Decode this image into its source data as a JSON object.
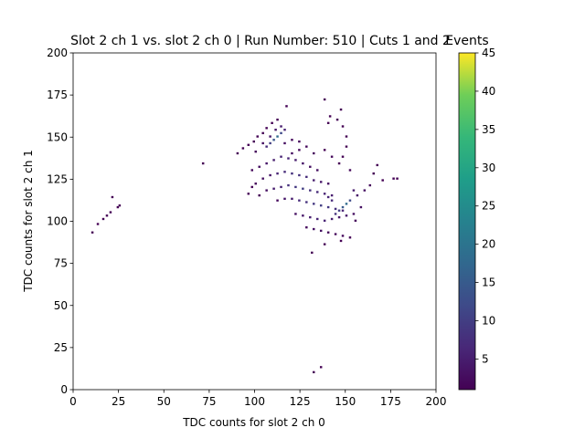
{
  "chart_data": {
    "type": "heatmap",
    "title": "Slot 2 ch 1 vs. slot 2 ch 0 | Run Number: 510 | Cuts 1 and 2",
    "xlabel": "TDC counts for slot 2 ch 0",
    "ylabel": "TDC counts for slot 2 ch 1",
    "xlim": [
      0,
      200
    ],
    "ylim": [
      0,
      200
    ],
    "xticks": [
      "0",
      "25",
      "50",
      "75",
      "100",
      "125",
      "150",
      "175",
      "200"
    ],
    "yticks": [
      "0",
      "25",
      "50",
      "75",
      "100",
      "125",
      "150",
      "175",
      "200"
    ],
    "bin_width": 1,
    "colormap": "viridis",
    "grid": false,
    "colorbar": {
      "label": "Events",
      "range": [
        1,
        45
      ],
      "ticks": [
        "5",
        "10",
        "15",
        "20",
        "25",
        "30",
        "35",
        "40",
        "45"
      ]
    },
    "cells": [
      [
        10,
        93,
        1
      ],
      [
        13,
        98,
        1
      ],
      [
        16,
        101,
        1
      ],
      [
        18,
        103,
        1
      ],
      [
        20,
        105,
        1
      ],
      [
        21,
        114,
        1
      ],
      [
        24,
        108,
        1
      ],
      [
        25,
        109,
        1
      ],
      [
        71,
        134,
        1
      ],
      [
        90,
        140,
        1
      ],
      [
        93,
        143,
        1
      ],
      [
        96,
        145,
        1
      ],
      [
        99,
        147,
        1
      ],
      [
        101,
        150,
        1
      ],
      [
        104,
        152,
        1
      ],
      [
        106,
        155,
        1
      ],
      [
        109,
        158,
        1
      ],
      [
        112,
        160,
        1
      ],
      [
        100,
        141,
        2
      ],
      [
        104,
        146,
        3
      ],
      [
        108,
        150,
        4
      ],
      [
        111,
        154,
        4
      ],
      [
        114,
        156,
        5
      ],
      [
        116,
        146,
        3
      ],
      [
        120,
        148,
        2
      ],
      [
        124,
        147,
        2
      ],
      [
        98,
        130,
        2
      ],
      [
        102,
        132,
        3
      ],
      [
        106,
        134,
        4
      ],
      [
        110,
        136,
        5
      ],
      [
        114,
        138,
        6
      ],
      [
        118,
        137,
        6
      ],
      [
        122,
        136,
        5
      ],
      [
        126,
        134,
        4
      ],
      [
        130,
        132,
        3
      ],
      [
        134,
        130,
        3
      ],
      [
        104,
        125,
        3
      ],
      [
        108,
        127,
        4
      ],
      [
        112,
        128,
        6
      ],
      [
        116,
        129,
        7
      ],
      [
        120,
        128,
        8
      ],
      [
        124,
        127,
        8
      ],
      [
        128,
        126,
        7
      ],
      [
        132,
        124,
        5
      ],
      [
        136,
        123,
        4
      ],
      [
        140,
        122,
        3
      ],
      [
        106,
        118,
        3
      ],
      [
        110,
        119,
        5
      ],
      [
        114,
        120,
        6
      ],
      [
        118,
        121,
        8
      ],
      [
        122,
        120,
        9
      ],
      [
        126,
        119,
        10
      ],
      [
        130,
        118,
        8
      ],
      [
        134,
        117,
        7
      ],
      [
        138,
        116,
        6
      ],
      [
        142,
        115,
        5
      ],
      [
        112,
        112,
        2
      ],
      [
        116,
        113,
        4
      ],
      [
        120,
        113,
        5
      ],
      [
        124,
        112,
        7
      ],
      [
        128,
        111,
        8
      ],
      [
        132,
        110,
        9
      ],
      [
        136,
        109,
        10
      ],
      [
        140,
        108,
        9
      ],
      [
        144,
        107,
        8
      ],
      [
        148,
        106,
        6
      ],
      [
        122,
        104,
        3
      ],
      [
        126,
        103,
        4
      ],
      [
        130,
        102,
        5
      ],
      [
        134,
        101,
        6
      ],
      [
        138,
        100,
        6
      ],
      [
        142,
        101,
        5
      ],
      [
        146,
        102,
        4
      ],
      [
        150,
        103,
        4
      ],
      [
        154,
        104,
        3
      ],
      [
        128,
        96,
        2
      ],
      [
        132,
        95,
        3
      ],
      [
        136,
        94,
        3
      ],
      [
        140,
        93,
        2
      ],
      [
        144,
        92,
        2
      ],
      [
        148,
        91,
        2
      ],
      [
        152,
        90,
        1
      ],
      [
        131,
        81,
        1
      ],
      [
        138,
        86,
        1
      ],
      [
        147,
        88,
        1
      ],
      [
        155,
        100,
        2
      ],
      [
        158,
        108,
        3
      ],
      [
        156,
        115,
        4
      ],
      [
        154,
        118,
        5
      ],
      [
        152,
        112,
        12
      ],
      [
        150,
        110,
        18
      ],
      [
        148,
        108,
        15
      ],
      [
        146,
        106,
        10
      ],
      [
        144,
        104,
        8
      ],
      [
        142,
        112,
        7
      ],
      [
        140,
        114,
        6
      ],
      [
        160,
        118,
        3
      ],
      [
        163,
        121,
        2
      ],
      [
        165,
        128,
        1
      ],
      [
        167,
        133,
        1
      ],
      [
        176,
        125,
        1
      ],
      [
        178,
        125,
        1
      ],
      [
        108,
        146,
        10
      ],
      [
        110,
        148,
        14
      ],
      [
        112,
        150,
        18
      ],
      [
        114,
        152,
        12
      ],
      [
        116,
        154,
        6
      ],
      [
        106,
        144,
        7
      ],
      [
        120,
        140,
        3
      ],
      [
        124,
        142,
        2
      ],
      [
        128,
        144,
        2
      ],
      [
        132,
        140,
        2
      ],
      [
        138,
        142,
        1
      ],
      [
        142,
        138,
        2
      ],
      [
        146,
        134,
        1
      ],
      [
        148,
        138,
        1
      ],
      [
        150,
        144,
        1
      ],
      [
        152,
        130,
        2
      ],
      [
        140,
        158,
        1
      ],
      [
        145,
        160,
        1
      ],
      [
        148,
        156,
        1
      ],
      [
        150,
        150,
        1
      ],
      [
        138,
        172,
        1
      ],
      [
        141,
        162,
        1
      ],
      [
        147,
        166,
        1
      ],
      [
        117,
        168,
        1
      ],
      [
        96,
        116,
        1
      ],
      [
        98,
        120,
        1
      ],
      [
        100,
        122,
        2
      ],
      [
        102,
        115,
        1
      ],
      [
        132,
        10,
        1
      ],
      [
        136,
        13,
        1
      ],
      [
        170,
        124,
        1
      ]
    ]
  }
}
